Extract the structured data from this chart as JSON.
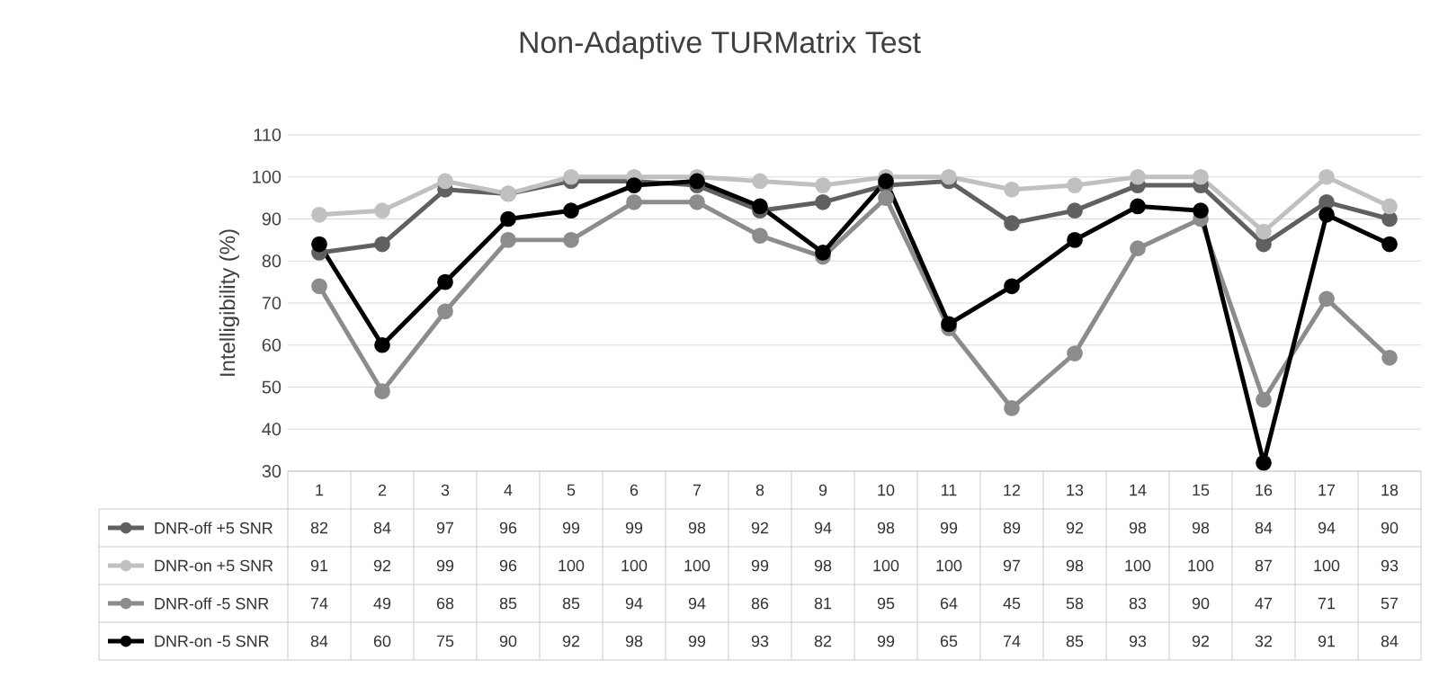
{
  "chart_data": {
    "type": "line",
    "title": "Non-Adaptive TURMatrix Test",
    "ylabel": "Intelligibility (%)",
    "categories": [
      "1",
      "2",
      "3",
      "4",
      "5",
      "6",
      "7",
      "8",
      "9",
      "10",
      "11",
      "12",
      "13",
      "14",
      "15",
      "16",
      "17",
      "18"
    ],
    "series": [
      {
        "name": "DNR-off +5 SNR",
        "color": "#606060",
        "values": [
          82,
          84,
          97,
          96,
          99,
          99,
          98,
          92,
          94,
          98,
          99,
          89,
          92,
          98,
          98,
          84,
          94,
          90
        ]
      },
      {
        "name": "DNR-on +5 SNR",
        "color": "#c0c0c0",
        "values": [
          91,
          92,
          99,
          96,
          100,
          100,
          100,
          99,
          98,
          100,
          100,
          97,
          98,
          100,
          100,
          87,
          100,
          93
        ]
      },
      {
        "name": "DNR-off -5 SNR",
        "color": "#8c8c8c",
        "values": [
          74,
          49,
          68,
          85,
          85,
          94,
          94,
          86,
          81,
          95,
          64,
          45,
          58,
          83,
          90,
          47,
          71,
          57
        ]
      },
      {
        "name": "DNR-on -5 SNR",
        "color": "#000000",
        "values": [
          84,
          60,
          75,
          90,
          92,
          98,
          99,
          93,
          82,
          99,
          65,
          74,
          85,
          93,
          92,
          32,
          91,
          84
        ]
      }
    ],
    "ylim": [
      30,
      110
    ],
    "yticks": [
      30,
      40,
      50,
      60,
      70,
      80,
      90,
      100,
      110
    ],
    "grid": "y",
    "marker": "circle",
    "legend": "bottom",
    "data_labels": true
  }
}
